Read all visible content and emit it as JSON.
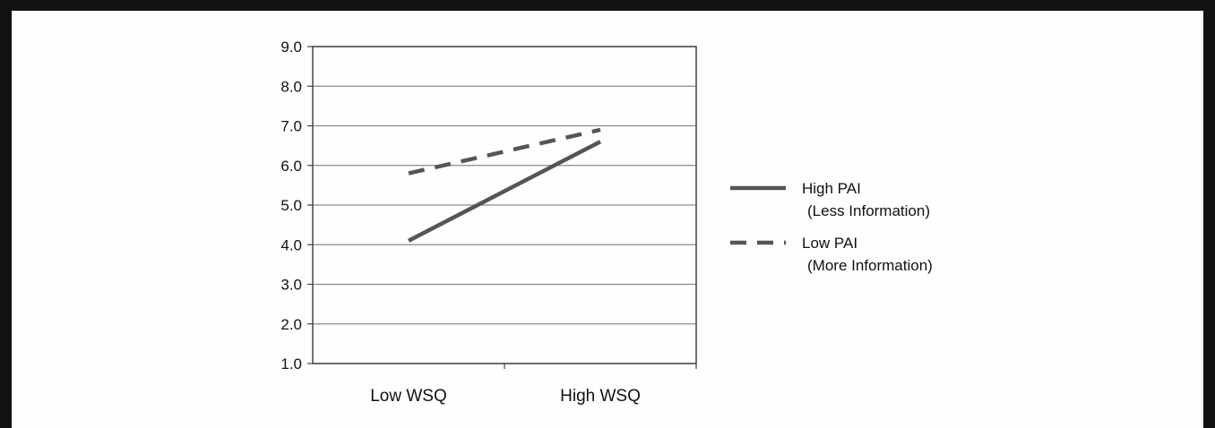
{
  "chart_data": {
    "type": "line",
    "categories": [
      "Low WSQ",
      "High WSQ"
    ],
    "series": [
      {
        "name": "High PAI",
        "name_line2": "(Less Information)",
        "values": [
          4.1,
          6.6
        ],
        "color": "#555555",
        "dash": "solid"
      },
      {
        "name": "Low PAI",
        "name_line2": "(More Information)",
        "values": [
          5.8,
          6.9
        ],
        "color": "#555555",
        "dash": "dashed"
      }
    ],
    "yticks": [
      "1.0",
      "2.0",
      "3.0",
      "4.0",
      "5.0",
      "6.0",
      "7.0",
      "8.0",
      "9.0"
    ],
    "ylim": [
      1.0,
      9.0
    ],
    "grid": true,
    "legend_position": "right"
  }
}
